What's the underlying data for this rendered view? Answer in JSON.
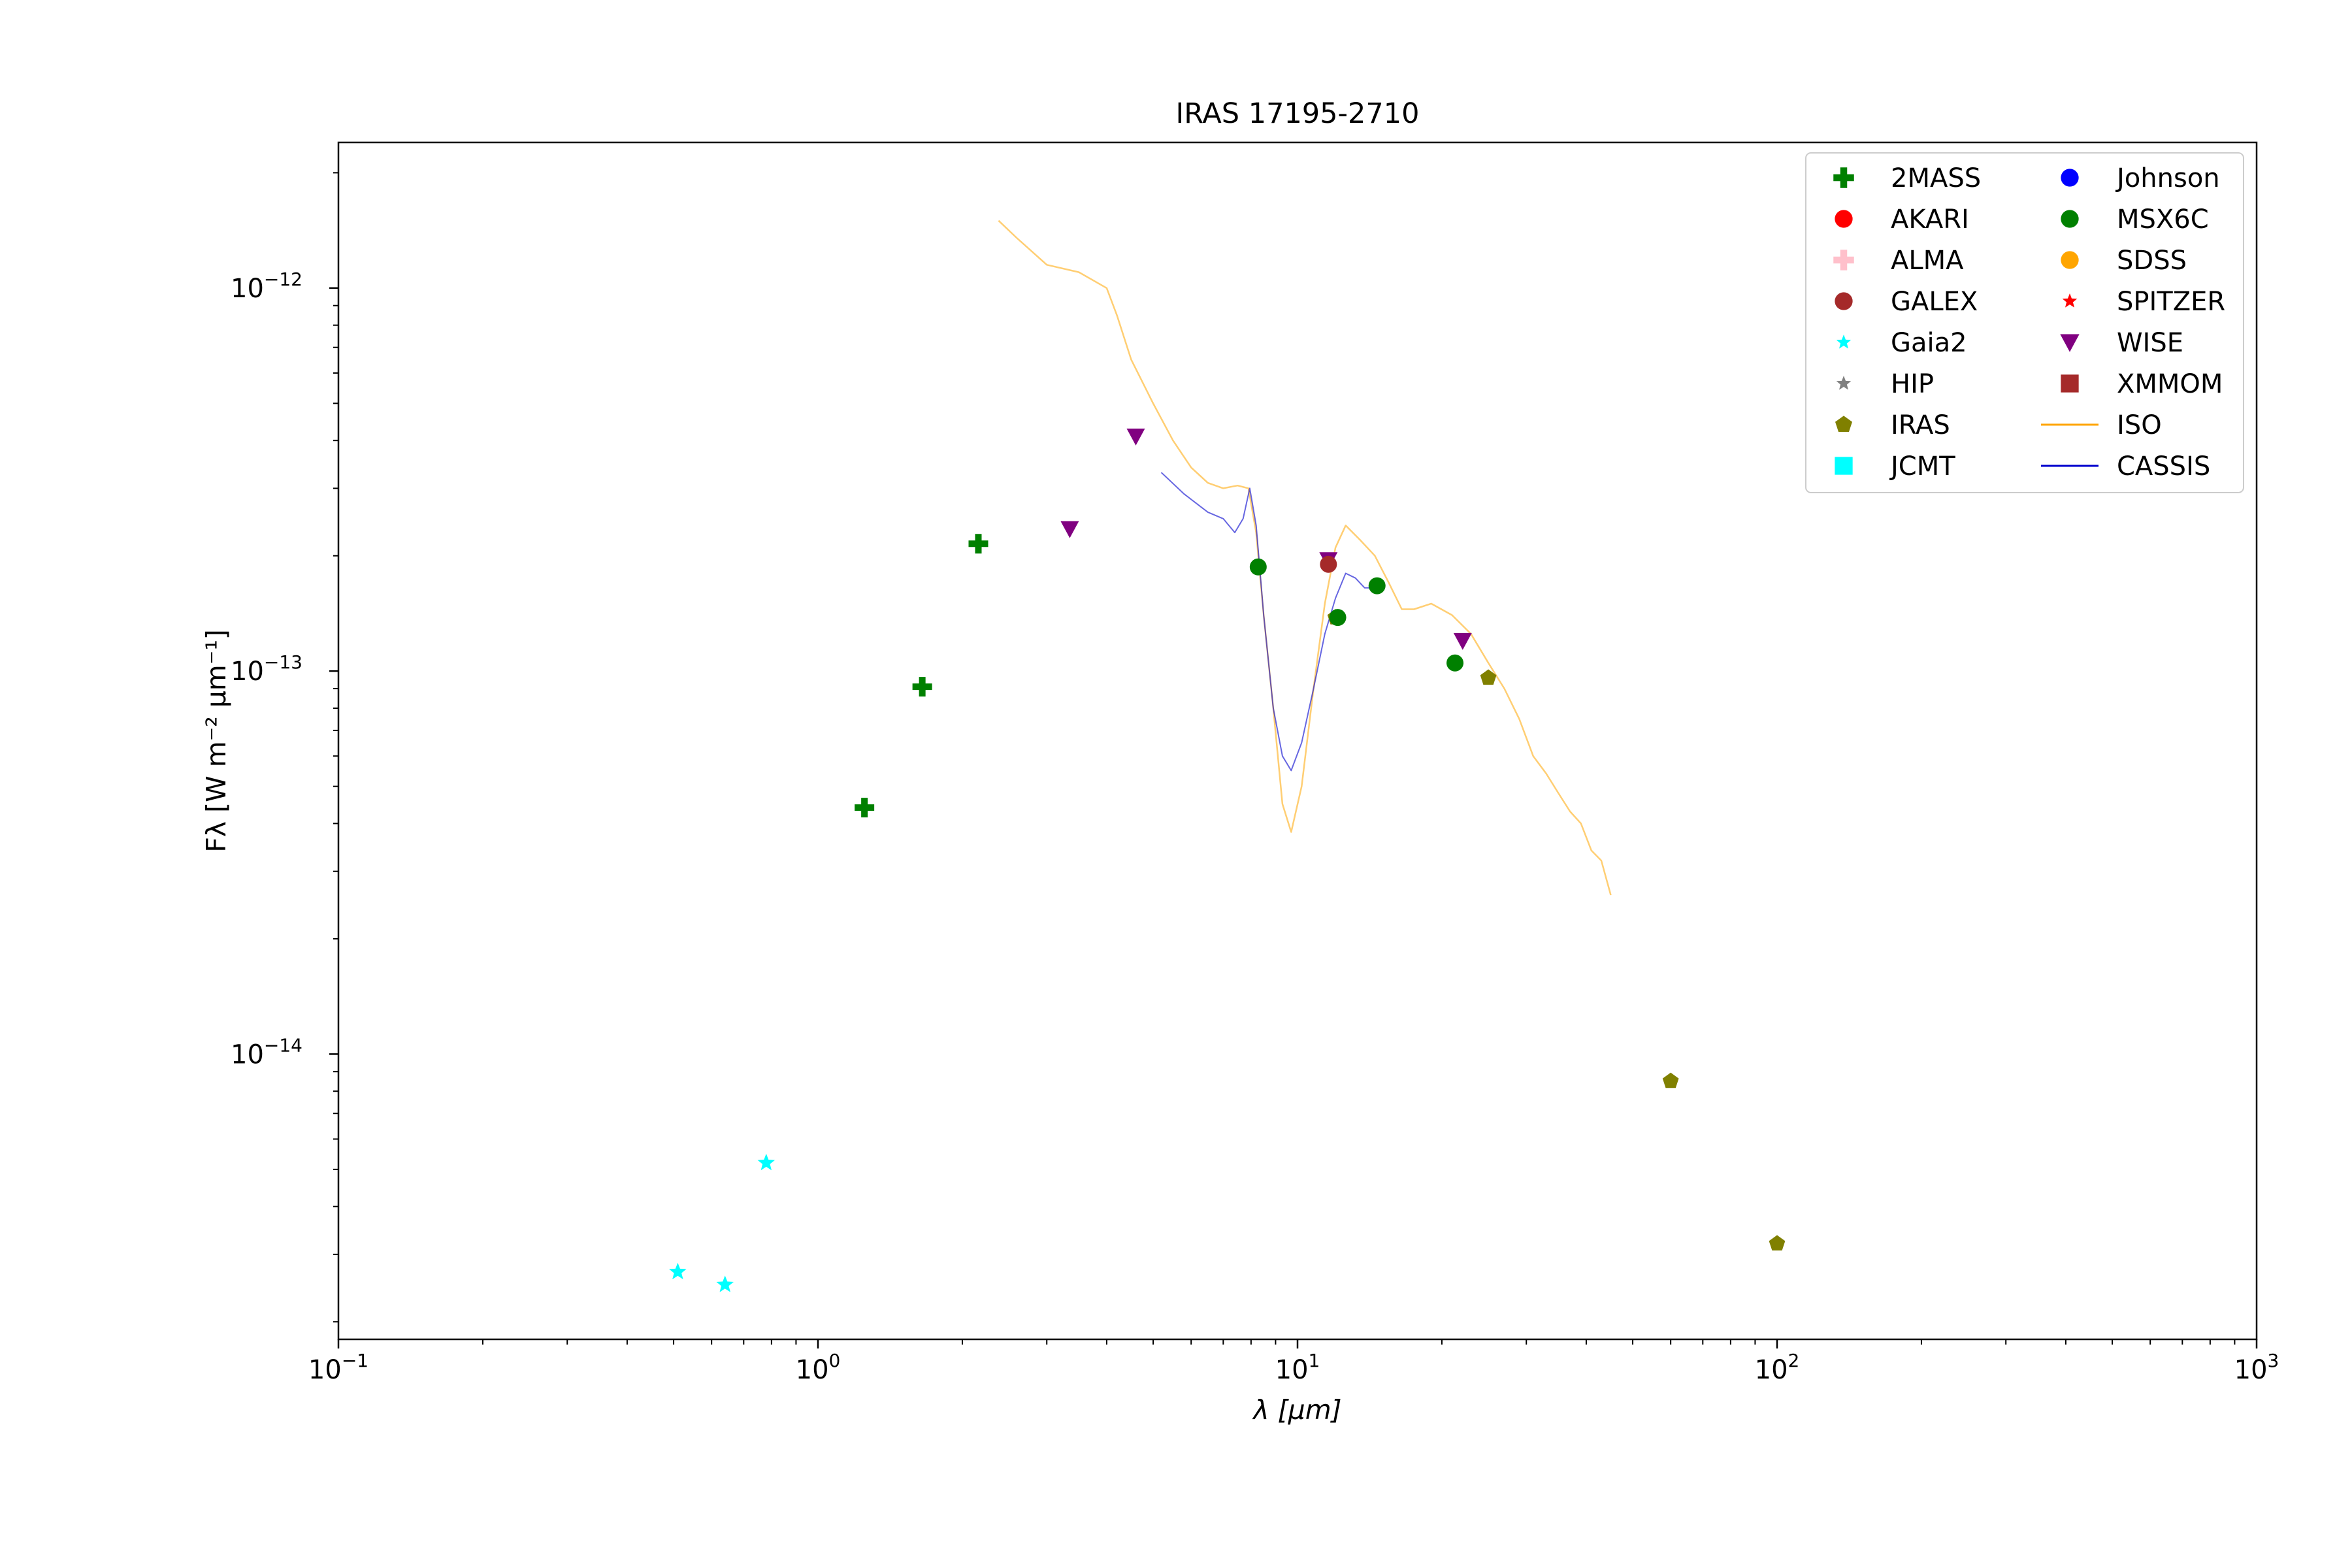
{
  "chart_data": {
    "type": "scatter",
    "title": "IRAS 17195-2710",
    "xlabel": "λ [μm]",
    "ylabel": "Fλ [W m⁻² μm⁻¹]",
    "x_scale": "log",
    "y_scale": "log",
    "xlim": [
      0.1,
      1000
    ],
    "ylim": [
      1.8e-15,
      2.4e-12
    ],
    "grid": false,
    "legend_position": "top-right",
    "x_ticks": [
      {
        "base": "10",
        "exp": "−1",
        "value": 0.1
      },
      {
        "base": "10",
        "exp": "0",
        "value": 1
      },
      {
        "base": "10",
        "exp": "1",
        "value": 10
      },
      {
        "base": "10",
        "exp": "2",
        "value": 100
      },
      {
        "base": "10",
        "exp": "3",
        "value": 1000
      }
    ],
    "y_ticks": [
      {
        "base": "10",
        "exp": "−14",
        "value": 1e-14
      },
      {
        "base": "10",
        "exp": "−13",
        "value": 1e-13
      },
      {
        "base": "10",
        "exp": "−12",
        "value": 1e-12
      }
    ],
    "legend": [
      {
        "name": "2MASS",
        "color": "#008000",
        "marker": "plus"
      },
      {
        "name": "AKARI",
        "color": "#ff0000",
        "marker": "circle"
      },
      {
        "name": "ALMA",
        "color": "#ffc0cb",
        "marker": "plus"
      },
      {
        "name": "GALEX",
        "color": "#a52a2a",
        "marker": "circle"
      },
      {
        "name": "Gaia2",
        "color": "#00ffff",
        "marker": "star"
      },
      {
        "name": "HIP",
        "color": "#808080",
        "marker": "star"
      },
      {
        "name": "IRAS",
        "color": "#808000",
        "marker": "pentagon"
      },
      {
        "name": "JCMT",
        "color": "#00ffff",
        "marker": "square"
      },
      {
        "name": "Johnson",
        "color": "#0000ff",
        "marker": "circle"
      },
      {
        "name": "MSX6C",
        "color": "#008000",
        "marker": "circle"
      },
      {
        "name": "SDSS",
        "color": "#ffa500",
        "marker": "circle"
      },
      {
        "name": "SPITZER",
        "color": "#ff0000",
        "marker": "star"
      },
      {
        "name": "WISE",
        "color": "#800080",
        "marker": "triangle-down"
      },
      {
        "name": "XMMOM",
        "color": "#a52a2a",
        "marker": "square"
      },
      {
        "name": "ISO",
        "color": "#ffa500",
        "marker": "line"
      },
      {
        "name": "CASSIS",
        "color": "#0000cd",
        "marker": "line"
      }
    ],
    "series": [
      {
        "name": "2MASS",
        "color": "#008000",
        "marker": "plus",
        "points": [
          [
            1.25,
            4.4e-14
          ],
          [
            1.65,
            9.1e-14
          ],
          [
            2.16,
            2.15e-13
          ]
        ]
      },
      {
        "name": "Gaia2",
        "color": "#00ffff",
        "marker": "star",
        "points": [
          [
            0.51,
            2.7e-15
          ],
          [
            0.64,
            2.5e-15
          ],
          [
            0.78,
            5.2e-15
          ]
        ]
      },
      {
        "name": "IRAS",
        "color": "#808000",
        "marker": "pentagon",
        "points": [
          [
            12,
            1.38e-13
          ],
          [
            25,
            9.6e-14
          ],
          [
            60,
            8.5e-15
          ],
          [
            100,
            3.2e-15
          ]
        ]
      },
      {
        "name": "MSX6C",
        "color": "#008000",
        "marker": "circle",
        "points": [
          [
            8.28,
            1.87e-13
          ],
          [
            12.13,
            1.38e-13
          ],
          [
            14.65,
            1.67e-13
          ],
          [
            21.3,
            1.05e-13
          ]
        ]
      },
      {
        "name": "WISE",
        "color": "#800080",
        "marker": "triangle-down",
        "points": [
          [
            3.35,
            2.35e-13
          ],
          [
            4.6,
            4.1e-13
          ],
          [
            11.6,
            1.95e-13
          ],
          [
            22.1,
            1.2e-13
          ]
        ]
      },
      {
        "name": "GALEX",
        "color": "#a52a2a",
        "marker": "circle",
        "points": [
          [
            11.6,
            1.9e-13
          ]
        ]
      },
      {
        "name": "ISO",
        "color": "#ffa500",
        "marker": "line",
        "points": [
          [
            2.38,
            1.5e-12
          ],
          [
            2.6,
            1.35e-12
          ],
          [
            3.0,
            1.15e-12
          ],
          [
            3.5,
            1.1e-12
          ],
          [
            4.0,
            1e-12
          ],
          [
            4.2,
            8.5e-13
          ],
          [
            4.5,
            6.5e-13
          ],
          [
            5.0,
            5e-13
          ],
          [
            5.5,
            4e-13
          ],
          [
            6.0,
            3.4e-13
          ],
          [
            6.5,
            3.1e-13
          ],
          [
            7.0,
            3e-13
          ],
          [
            7.5,
            3.05e-13
          ],
          [
            7.9,
            3e-13
          ],
          [
            8.2,
            2.3e-13
          ],
          [
            8.5,
            1.4e-13
          ],
          [
            8.9,
            8e-14
          ],
          [
            9.3,
            4.5e-14
          ],
          [
            9.7,
            3.8e-14
          ],
          [
            10.2,
            5e-14
          ],
          [
            10.8,
            9e-14
          ],
          [
            11.4,
            1.5e-13
          ],
          [
            12.0,
            2.1e-13
          ],
          [
            12.6,
            2.4e-13
          ],
          [
            13.5,
            2.2e-13
          ],
          [
            14.5,
            2e-13
          ],
          [
            15.5,
            1.7e-13
          ],
          [
            16.5,
            1.45e-13
          ],
          [
            17.5,
            1.45e-13
          ],
          [
            19.0,
            1.5e-13
          ],
          [
            21.0,
            1.4e-13
          ],
          [
            23.0,
            1.25e-13
          ],
          [
            25.0,
            1.05e-13
          ],
          [
            27.0,
            9e-14
          ],
          [
            29.0,
            7.5e-14
          ],
          [
            31.0,
            6e-14
          ],
          [
            33.0,
            5.4e-14
          ],
          [
            35.0,
            4.8e-14
          ],
          [
            37.0,
            4.3e-14
          ],
          [
            39.0,
            4e-14
          ],
          [
            41.0,
            3.4e-14
          ],
          [
            43.0,
            3.2e-14
          ],
          [
            45.0,
            2.6e-14
          ]
        ]
      },
      {
        "name": "CASSIS",
        "color": "#0000cd",
        "marker": "line",
        "points": [
          [
            5.2,
            3.3e-13
          ],
          [
            5.8,
            2.9e-13
          ],
          [
            6.5,
            2.6e-13
          ],
          [
            7.0,
            2.5e-13
          ],
          [
            7.4,
            2.3e-13
          ],
          [
            7.7,
            2.5e-13
          ],
          [
            7.95,
            3e-13
          ],
          [
            8.2,
            2.4e-13
          ],
          [
            8.5,
            1.4e-13
          ],
          [
            8.9,
            8e-14
          ],
          [
            9.3,
            6e-14
          ],
          [
            9.7,
            5.5e-14
          ],
          [
            10.2,
            6.5e-14
          ],
          [
            10.8,
            9e-14
          ],
          [
            11.4,
            1.25e-13
          ],
          [
            12.0,
            1.55e-13
          ],
          [
            12.6,
            1.8e-13
          ],
          [
            13.2,
            1.75e-13
          ],
          [
            13.8,
            1.65e-13
          ],
          [
            14.2,
            1.65e-13
          ]
        ]
      }
    ]
  }
}
